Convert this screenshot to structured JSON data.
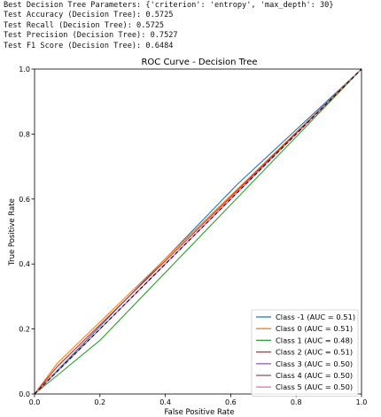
{
  "output_lines": [
    "Best Decision Tree Parameters: {'criterion': 'entropy', 'max_depth': 30}",
    "Test Accuracy (Decision Tree): 0.5725",
    "Test Recall (Decision Tree): 0.5725",
    "Test Precision (Decision Tree): 0.7527",
    "Test F1 Score (Decision Tree): 0.6484"
  ],
  "chart_data": {
    "type": "line",
    "title": "ROC Curve - Decision Tree",
    "xlabel": "False Positive Rate",
    "ylabel": "True Positive Rate",
    "xlim": [
      0,
      1
    ],
    "ylim": [
      0,
      1
    ],
    "xticks": [
      "0.0",
      "0.2",
      "0.4",
      "0.6",
      "0.8",
      "1.0"
    ],
    "yticks": [
      "0.0",
      "0.2",
      "0.4",
      "0.6",
      "0.8",
      "1.0"
    ],
    "grid": false,
    "legend_position": "lower-right",
    "diagonal": {
      "style": "dashed",
      "color": "#000000",
      "x": [
        0,
        1
      ],
      "y": [
        0,
        1
      ]
    },
    "series": [
      {
        "name": "Class -1 (AUC = 0.51)",
        "color": "#1f77b4",
        "x": [
          0,
          0.62,
          1
        ],
        "y": [
          0,
          0.645,
          1
        ]
      },
      {
        "name": "Class 0 (AUC = 0.51)",
        "color": "#ff7f0e",
        "x": [
          0,
          0.07,
          1
        ],
        "y": [
          0,
          0.095,
          1
        ]
      },
      {
        "name": "Class 1 (AUC = 0.48)",
        "color": "#2ca02c",
        "x": [
          0,
          0.2,
          1
        ],
        "y": [
          0,
          0.165,
          1
        ]
      },
      {
        "name": "Class 2 (AUC = 0.51)",
        "color": "#d62728",
        "x": [
          0,
          0.07,
          1
        ],
        "y": [
          0,
          0.085,
          1
        ]
      },
      {
        "name": "Class 3 (AUC = 0.50)",
        "color": "#9467bd",
        "x": [
          0,
          1
        ],
        "y": [
          0,
          1
        ]
      },
      {
        "name": "Class 4 (AUC = 0.50)",
        "color": "#8c564b",
        "x": [
          0,
          1
        ],
        "y": [
          0,
          1
        ]
      },
      {
        "name": "Class 5 (AUC = 0.50)",
        "color": "#e377c2",
        "x": [
          0,
          1
        ],
        "y": [
          0,
          1
        ]
      }
    ]
  }
}
